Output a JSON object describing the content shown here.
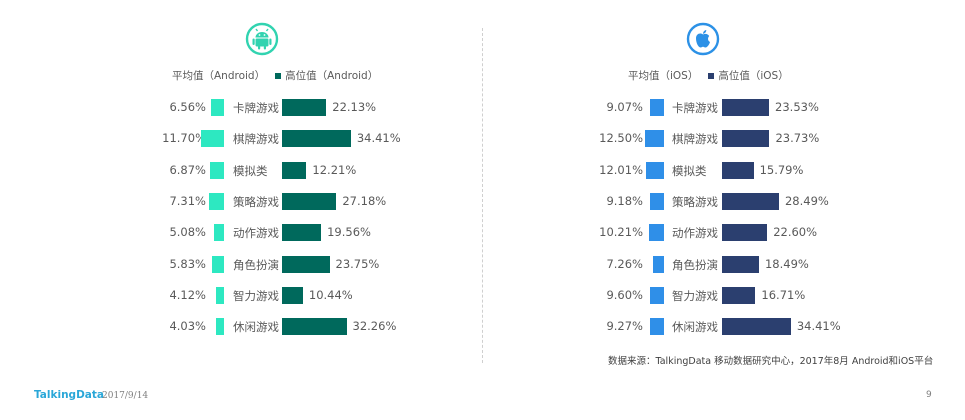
{
  "colors": {
    "android_low": "#2de8c1",
    "android_high": "#00695c",
    "ios_low": "#2f8fe8",
    "ios_high": "#2b3f6f",
    "icon_android": "#31d3b0",
    "icon_ios": "#2c91e6"
  },
  "chart_data": [
    {
      "type": "bar",
      "platform": "Android",
      "legend": {
        "low": "平均值（Android）",
        "high": "高位值（Android）"
      },
      "categories": [
        "卡牌游戏",
        "棋牌游戏",
        "模拟类",
        "策略游戏",
        "动作游戏",
        "角色扮演",
        "智力游戏",
        "休闲游戏"
      ],
      "series": [
        {
          "name": "平均值（Android）",
          "values": [
            6.56,
            11.7,
            6.87,
            7.31,
            5.08,
            5.83,
            4.12,
            4.03
          ],
          "labels": [
            "6.56%",
            "11.70%",
            "6.87%",
            "7.31%",
            "5.08%",
            "5.83%",
            "4.12%",
            "4.03%"
          ]
        },
        {
          "name": "高位值（Android）",
          "values": [
            22.13,
            34.41,
            12.21,
            27.18,
            19.56,
            23.75,
            10.44,
            32.26
          ],
          "labels": [
            "22.13%",
            "34.41%",
            "12.21%",
            "27.18%",
            "19.56%",
            "23.75%",
            "10.44%",
            "32.26%"
          ]
        }
      ]
    },
    {
      "type": "bar",
      "platform": "iOS",
      "legend": {
        "low": "平均值（iOS）",
        "high": "高位值（iOS）"
      },
      "categories": [
        "卡牌游戏",
        "棋牌游戏",
        "模拟类",
        "策略游戏",
        "动作游戏",
        "角色扮演",
        "智力游戏",
        "休闲游戏"
      ],
      "series": [
        {
          "name": "平均值（iOS）",
          "values": [
            9.07,
            12.5,
            12.01,
            9.18,
            10.21,
            7.26,
            9.6,
            9.27
          ],
          "labels": [
            "9.07%",
            "12.50%",
            "12.01%",
            "9.18%",
            "10.21%",
            "7.26%",
            "9.60%",
            "9.27%"
          ]
        },
        {
          "name": "高位值（iOS）",
          "values": [
            23.53,
            23.73,
            15.79,
            28.49,
            22.6,
            18.49,
            16.71,
            34.41
          ],
          "labels": [
            "23.53%",
            "23.73%",
            "15.79%",
            "28.49%",
            "22.60%",
            "18.49%",
            "16.71%",
            "34.41%"
          ]
        }
      ]
    }
  ],
  "source": "数据来源：TalkingData 移动数据研究中心，2017年8月 Android和iOS平台",
  "footer": {
    "brand": "TalkingData",
    "date": "2017/9/14",
    "page": "9"
  },
  "icons": {
    "left": "android-icon",
    "right": "apple-icon"
  }
}
